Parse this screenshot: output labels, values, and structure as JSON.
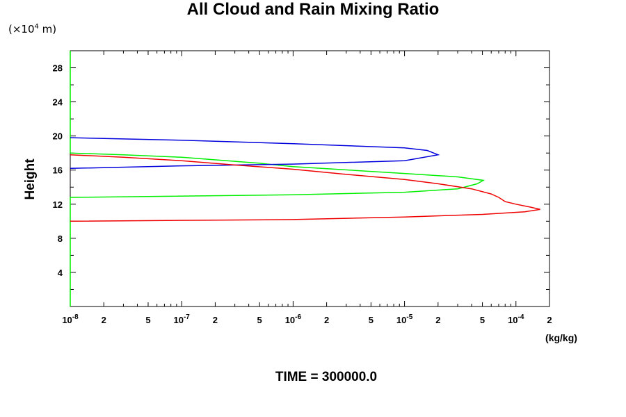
{
  "chart_data": {
    "type": "line",
    "title": "All Cloud and Rain Mixing Ratio",
    "ylabel": "Height",
    "y_scale_label": {
      "base": "(×10",
      "exponent": "4",
      "suffix": " m)"
    },
    "xlabel": "(kg/kg)",
    "x_scale": "log",
    "xlim": [
      1e-08,
      0.0002
    ],
    "ylim": [
      0,
      30
    ],
    "y_ticks": [
      4,
      8,
      12,
      16,
      20,
      24,
      28
    ],
    "x_ticks": [
      {
        "value": 1e-08,
        "base": "10",
        "exp": "-8"
      },
      {
        "value": 2e-08,
        "base": "2",
        "exp": ""
      },
      {
        "value": 5e-08,
        "base": "5",
        "exp": ""
      },
      {
        "value": 1e-07,
        "base": "10",
        "exp": "-7"
      },
      {
        "value": 2e-07,
        "base": "2",
        "exp": ""
      },
      {
        "value": 5e-07,
        "base": "5",
        "exp": ""
      },
      {
        "value": 1e-06,
        "base": "10",
        "exp": "-6"
      },
      {
        "value": 2e-06,
        "base": "2",
        "exp": ""
      },
      {
        "value": 5e-06,
        "base": "5",
        "exp": ""
      },
      {
        "value": 1e-05,
        "base": "10",
        "exp": "-5"
      },
      {
        "value": 2e-05,
        "base": "2",
        "exp": ""
      },
      {
        "value": 5e-05,
        "base": "5",
        "exp": ""
      },
      {
        "value": 0.0001,
        "base": "10",
        "exp": "-4"
      },
      {
        "value": 0.0002,
        "base": "2",
        "exp": ""
      }
    ],
    "series": [
      {
        "color": "#00ee00",
        "points": [
          [
            1e-08,
            0
          ],
          [
            1e-08,
            12.8
          ],
          [
            1e-06,
            13.1
          ],
          [
            1e-05,
            13.4
          ],
          [
            3e-05,
            13.8
          ],
          [
            4.5e-05,
            14.4
          ],
          [
            5.1e-05,
            14.8
          ],
          [
            3e-05,
            15.2
          ],
          [
            1e-05,
            15.6
          ],
          [
            1e-06,
            16.4
          ],
          [
            5e-07,
            16.8
          ],
          [
            1e-07,
            17.5
          ],
          [
            3e-08,
            17.8
          ],
          [
            1e-08,
            18
          ],
          [
            1e-08,
            30
          ]
        ]
      },
      {
        "color": "#0000dd",
        "points": [
          [
            1e-08,
            16.2
          ],
          [
            1e-07,
            16.5
          ],
          [
            1e-06,
            16.7
          ],
          [
            1e-05,
            17.1
          ],
          [
            2e-05,
            17.8
          ],
          [
            1.6e-05,
            18.3
          ],
          [
            1e-05,
            18.6
          ],
          [
            1e-06,
            19.1
          ],
          [
            1e-07,
            19.5
          ],
          [
            1e-08,
            19.8
          ]
        ]
      },
      {
        "color": "#ee0000",
        "points": [
          [
            1e-08,
            10
          ],
          [
            1e-06,
            10.2
          ],
          [
            1e-05,
            10.5
          ],
          [
            5e-05,
            10.8
          ],
          [
            0.00012,
            11.1
          ],
          [
            0.000165,
            11.4
          ],
          [
            0.00013,
            11.7
          ],
          [
            0.0001,
            12
          ],
          [
            8e-05,
            12.3
          ],
          [
            7e-05,
            12.8
          ],
          [
            6e-05,
            13.2
          ],
          [
            4e-05,
            13.8
          ],
          [
            2e-05,
            14.4
          ],
          [
            1e-05,
            14.9
          ],
          [
            3e-06,
            15.5
          ],
          [
            1e-06,
            16.1
          ],
          [
            3e-07,
            16.6
          ],
          [
            1e-07,
            17.1
          ],
          [
            3e-08,
            17.5
          ],
          [
            1e-08,
            17.8
          ]
        ]
      }
    ]
  },
  "footer": {
    "time_label": "TIME = 300000.0"
  }
}
